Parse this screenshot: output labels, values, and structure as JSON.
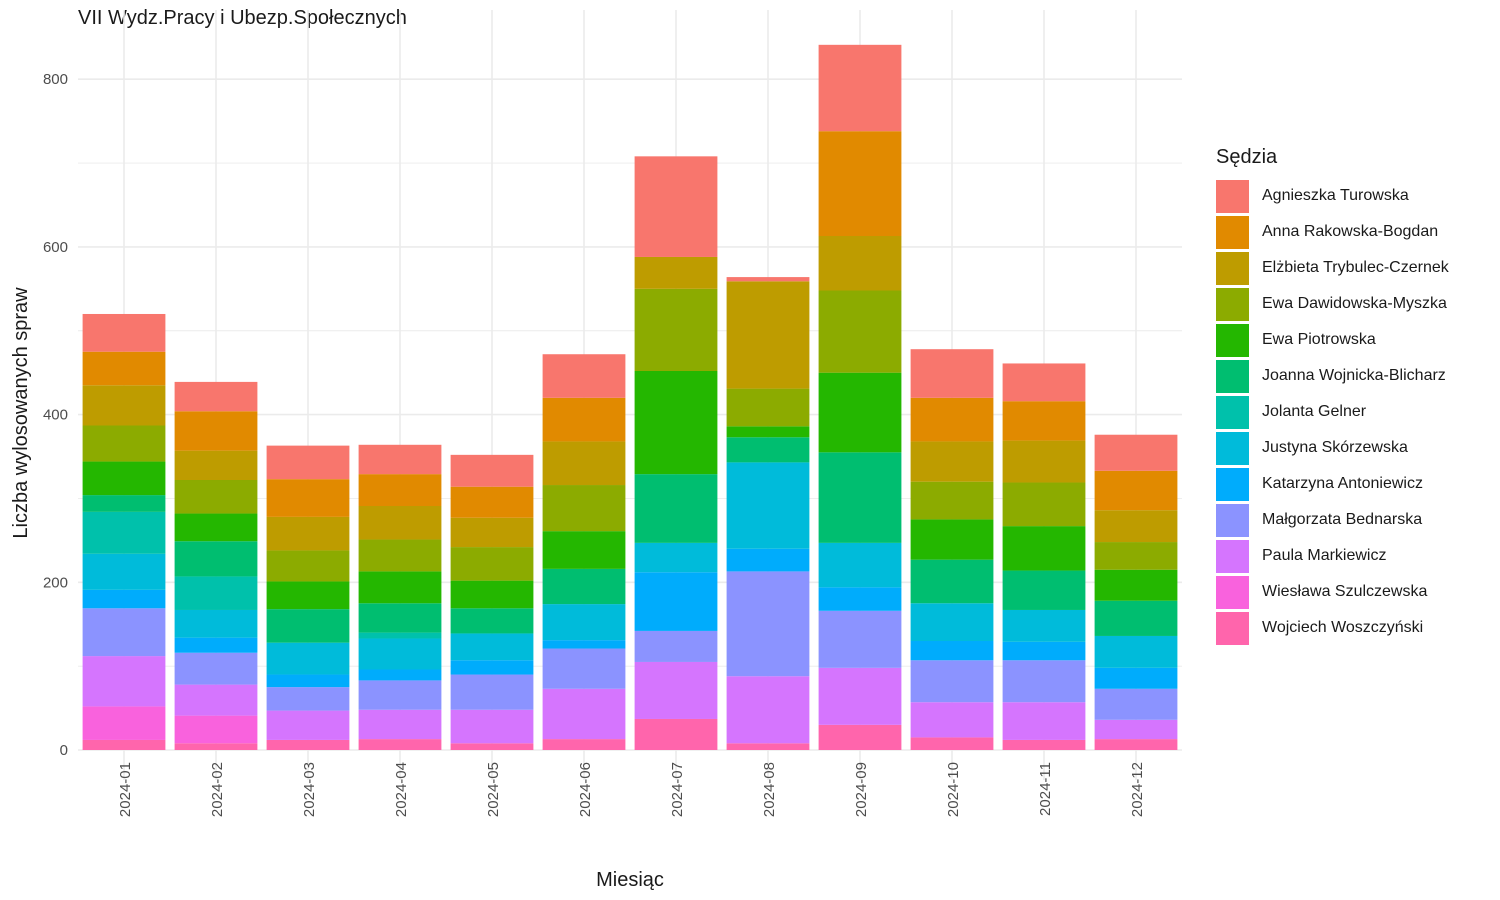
{
  "chart_data": {
    "type": "bar",
    "stacked": true,
    "title": "VII Wydz.Pracy i Ubezp.Społecznych",
    "xlabel": "Miesiąc",
    "ylabel": "Liczba wylosowanych spraw",
    "ylim": [
      0,
      880
    ],
    "yticks": [
      0,
      200,
      400,
      600,
      800
    ],
    "grid": true,
    "legend_title": "Sędzia",
    "legend_position": "right",
    "categories": [
      "2024-01",
      "2024-02",
      "2024-03",
      "2024-04",
      "2024-05",
      "2024-06",
      "2024-07",
      "2024-08",
      "2024-09",
      "2024-10",
      "2024-11",
      "2024-12"
    ],
    "series": [
      {
        "name": "Agnieszka Turowska",
        "color": "#F8766D",
        "values": [
          45,
          35,
          40,
          35,
          38,
          52,
          120,
          5,
          103,
          58,
          45,
          43
        ]
      },
      {
        "name": "Anna Rakowska-Bogdan",
        "color": "#E18A00",
        "values": [
          40,
          47,
          45,
          38,
          37,
          52,
          0,
          0,
          125,
          52,
          47,
          47
        ]
      },
      {
        "name": "Elżbieta Trybulec-Czernek",
        "color": "#BE9C00",
        "values": [
          48,
          35,
          40,
          40,
          35,
          52,
          38,
          128,
          65,
          48,
          50,
          38
        ]
      },
      {
        "name": "Ewa Dawidowska-Myszka",
        "color": "#8CAB00",
        "values": [
          43,
          40,
          37,
          38,
          40,
          55,
          98,
          45,
          98,
          45,
          52,
          33
        ]
      },
      {
        "name": "Ewa Piotrowska",
        "color": "#24B700",
        "values": [
          40,
          33,
          33,
          38,
          33,
          45,
          123,
          13,
          95,
          48,
          53,
          37
        ]
      },
      {
        "name": "Joanna Wojnicka-Blicharz",
        "color": "#00BE70",
        "values": [
          20,
          42,
          40,
          35,
          30,
          42,
          82,
          30,
          108,
          52,
          47,
          42
        ]
      },
      {
        "name": "Jolanta Gelner",
        "color": "#00C1AB",
        "values": [
          50,
          40,
          0,
          7,
          0,
          0,
          0,
          0,
          0,
          0,
          0,
          0
        ]
      },
      {
        "name": "Justyna Skórzewska",
        "color": "#00BBDA",
        "values": [
          43,
          33,
          38,
          37,
          32,
          43,
          35,
          103,
          53,
          45,
          38,
          38
        ]
      },
      {
        "name": "Katarzyna Antoniewicz",
        "color": "#00ACFC",
        "values": [
          22,
          18,
          15,
          13,
          17,
          10,
          70,
          27,
          28,
          23,
          22,
          25
        ]
      },
      {
        "name": "Małgorzata Bednarska",
        "color": "#8B93FF",
        "values": [
          57,
          38,
          28,
          35,
          42,
          48,
          37,
          125,
          68,
          50,
          50,
          37
        ]
      },
      {
        "name": "Paula Markiewicz",
        "color": "#D575FE",
        "values": [
          60,
          37,
          35,
          35,
          40,
          60,
          68,
          80,
          68,
          42,
          45,
          23
        ]
      },
      {
        "name": "Wiesława Szulczewska",
        "color": "#F962DD",
        "values": [
          40,
          33,
          0,
          0,
          0,
          0,
          0,
          0,
          0,
          0,
          0,
          0
        ]
      },
      {
        "name": "Wojciech Woszczyński",
        "color": "#FF65AC",
        "values": [
          12,
          8,
          12,
          13,
          8,
          13,
          37,
          8,
          30,
          15,
          12,
          13
        ]
      }
    ]
  }
}
